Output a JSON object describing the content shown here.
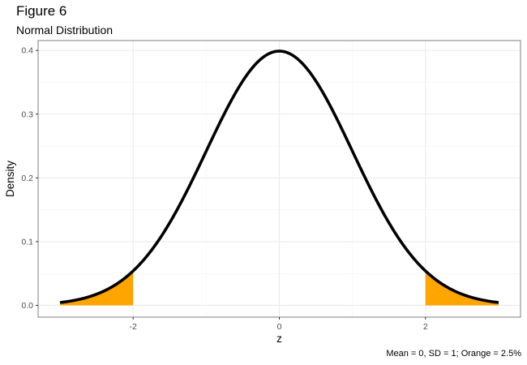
{
  "title": "Figure 6",
  "subtitle": "Normal Distribution",
  "caption": "Mean = 0, SD = 1; Orange = 2.5%",
  "colors": {
    "curve": "#000000",
    "tail_fill": "#FFA500",
    "grid_major": "#ebebeb",
    "grid_minor": "#f5f5f5",
    "panel_border": "#7f7f7f",
    "tick_text": "#4d4d4d"
  },
  "chart_data": {
    "type": "area",
    "title": "Figure 6",
    "subtitle": "Normal Distribution",
    "xlabel": "z",
    "ylabel": "Density",
    "xlim": [
      -3.3,
      3.3
    ],
    "ylim": [
      -0.0185,
      0.4155
    ],
    "x_ticks": [
      {
        "value": -2,
        "label": "-2"
      },
      {
        "value": 0,
        "label": "0"
      },
      {
        "value": 2,
        "label": "2"
      }
    ],
    "y_ticks": [
      {
        "value": 0.0,
        "label": "0.0"
      },
      {
        "value": 0.1,
        "label": "0.1"
      },
      {
        "value": 0.2,
        "label": "0.2"
      },
      {
        "value": 0.3,
        "label": "0.3"
      },
      {
        "value": 0.4,
        "label": "0.4"
      }
    ],
    "grid": true,
    "series": [
      {
        "kind": "line",
        "x": [
          -3.0,
          -2.75,
          -2.5,
          -2.25,
          -2.0,
          -1.75,
          -1.5,
          -1.25,
          -1.0,
          -0.75,
          -0.5,
          -0.25,
          0.0,
          0.25,
          0.5,
          0.75,
          1.0,
          1.25,
          1.5,
          1.75,
          2.0,
          2.25,
          2.5,
          2.75,
          3.0
        ],
        "y": [
          0.0044,
          0.0091,
          0.0175,
          0.0317,
          0.054,
          0.0863,
          0.1295,
          0.1826,
          0.242,
          0.3011,
          0.3521,
          0.3867,
          0.3989,
          0.3867,
          0.3521,
          0.3011,
          0.242,
          0.1826,
          0.1295,
          0.0863,
          0.054,
          0.0317,
          0.0175,
          0.0091,
          0.0044
        ]
      },
      {
        "kind": "area",
        "x": [
          -3.0,
          -2.75,
          -2.5,
          -2.25,
          -2.0
        ],
        "y": [
          0.0044,
          0.0091,
          0.0175,
          0.0317,
          0.054
        ]
      },
      {
        "kind": "area",
        "x": [
          2.0,
          2.25,
          2.5,
          2.75,
          3.0
        ],
        "y": [
          0.054,
          0.0317,
          0.0175,
          0.0091,
          0.0044
        ]
      }
    ]
  }
}
